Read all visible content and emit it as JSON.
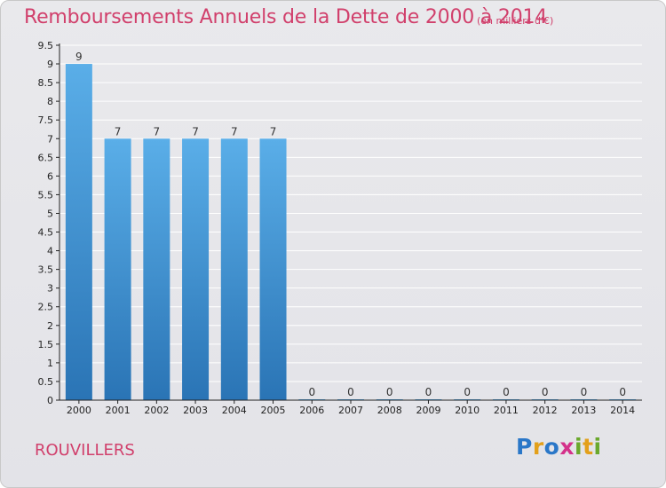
{
  "title": "Remboursements Annuels de la Dette de 2000 à 2014",
  "subtitle": "(en milliers d'€)",
  "commune": "ROUVILLERS",
  "logo": {
    "text": "Proxiti",
    "letters": [
      "P",
      "r",
      "o",
      "x",
      "i",
      "t",
      "i"
    ],
    "colors": [
      "#2a77c8",
      "#e3a01b",
      "#2a77c8",
      "#d4318a",
      "#6aa82c",
      "#e3a01b",
      "#6aa82c"
    ]
  },
  "colors": {
    "title": "#d1406c",
    "bar_top": "#5aaee8",
    "bar_bottom": "#2a74b5",
    "axis": "#222222",
    "grid": "#ffffff"
  },
  "chart_data": {
    "type": "bar",
    "title": "Remboursements Annuels de la Dette de 2000 à 2014",
    "subtitle": "(en milliers d'€)",
    "xlabel": "",
    "ylabel": "",
    "categories": [
      "2000",
      "2001",
      "2002",
      "2003",
      "2004",
      "2005",
      "2006",
      "2007",
      "2008",
      "2009",
      "2010",
      "2011",
      "2012",
      "2013",
      "2014"
    ],
    "values": [
      9,
      7,
      7,
      7,
      7,
      7,
      0,
      0,
      0,
      0,
      0,
      0,
      0,
      0,
      0
    ],
    "data_labels": [
      "9",
      "7",
      "7",
      "7",
      "7",
      "7",
      "0",
      "0",
      "0",
      "0",
      "0",
      "0",
      "0",
      "0",
      "0"
    ],
    "ylim": [
      0,
      9.5
    ],
    "yticks": [
      0,
      0.5,
      1,
      1.5,
      2,
      2.5,
      3,
      3.5,
      4,
      4.5,
      5,
      5.5,
      6,
      6.5,
      7,
      7.5,
      8,
      8.5,
      9,
      9.5
    ],
    "ytick_labels": [
      "0",
      "0.5",
      "1",
      "1.5",
      "2",
      "2.5",
      "3",
      "3.5",
      "4",
      "4.5",
      "5",
      "5.5",
      "6",
      "6.5",
      "7",
      "7.5",
      "8",
      "8.5",
      "9",
      "9.5"
    ],
    "grid": true,
    "legend": "none"
  }
}
